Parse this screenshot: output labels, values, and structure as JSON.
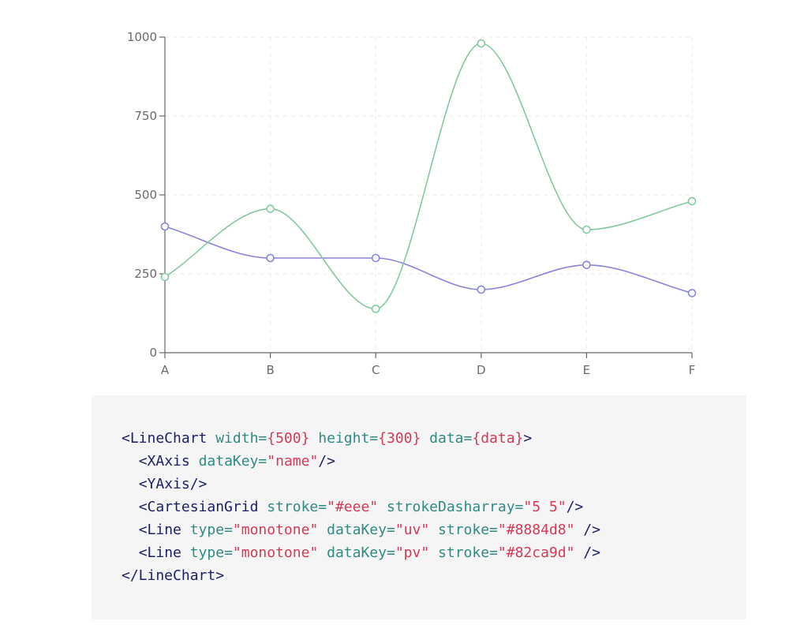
{
  "chart_data": {
    "type": "line",
    "categories": [
      "A",
      "B",
      "C",
      "D",
      "E",
      "F"
    ],
    "series": [
      {
        "key": "uv",
        "color": "#8884d8",
        "values": [
          400,
          300,
          300,
          200,
          278,
          189
        ]
      },
      {
        "key": "pv",
        "color": "#82ca9d",
        "values": [
          240,
          456,
          139,
          980,
          390,
          480
        ]
      }
    ],
    "ylim": [
      0,
      1000
    ],
    "yticks": [
      0,
      250,
      500,
      750,
      1000
    ],
    "yticks_labels": [
      "0",
      "250",
      "500",
      "750",
      "1000"
    ],
    "grid": true,
    "grid_stroke": "#eeeeee",
    "curve": "monotone",
    "xlabel": "",
    "ylabel": "",
    "title": ""
  },
  "code": {
    "lines": [
      [
        {
          "t": "tag",
          "v": "<LineChart"
        },
        {
          "t": "ws",
          "v": " "
        },
        {
          "t": "attr",
          "v": "width="
        },
        {
          "t": "str",
          "v": "{500}"
        },
        {
          "t": "ws",
          "v": " "
        },
        {
          "t": "attr",
          "v": "height="
        },
        {
          "t": "str",
          "v": "{300}"
        },
        {
          "t": "ws",
          "v": " "
        },
        {
          "t": "attr",
          "v": "data="
        },
        {
          "t": "str",
          "v": "{data}"
        },
        {
          "t": "punct",
          "v": ">"
        }
      ],
      [
        {
          "t": "ws",
          "v": "  "
        },
        {
          "t": "tag",
          "v": "<XAxis"
        },
        {
          "t": "ws",
          "v": " "
        },
        {
          "t": "attr",
          "v": "dataKey="
        },
        {
          "t": "str",
          "v": "\"name\""
        },
        {
          "t": "punct",
          "v": "/>"
        }
      ],
      [
        {
          "t": "ws",
          "v": "  "
        },
        {
          "t": "tag",
          "v": "<YAxis/>"
        }
      ],
      [
        {
          "t": "ws",
          "v": "  "
        },
        {
          "t": "tag",
          "v": "<CartesianGrid"
        },
        {
          "t": "ws",
          "v": " "
        },
        {
          "t": "attr",
          "v": "stroke="
        },
        {
          "t": "str",
          "v": "\"#eee\""
        },
        {
          "t": "ws",
          "v": " "
        },
        {
          "t": "attr",
          "v": "strokeDasharray="
        },
        {
          "t": "str",
          "v": "\"5 5\""
        },
        {
          "t": "punct",
          "v": "/>"
        }
      ],
      [
        {
          "t": "ws",
          "v": "  "
        },
        {
          "t": "tag",
          "v": "<Line"
        },
        {
          "t": "ws",
          "v": " "
        },
        {
          "t": "attr",
          "v": "type="
        },
        {
          "t": "str",
          "v": "\"monotone\""
        },
        {
          "t": "ws",
          "v": " "
        },
        {
          "t": "attr",
          "v": "dataKey="
        },
        {
          "t": "str",
          "v": "\"uv\""
        },
        {
          "t": "ws",
          "v": " "
        },
        {
          "t": "attr",
          "v": "stroke="
        },
        {
          "t": "str",
          "v": "\"#8884d8\""
        },
        {
          "t": "ws",
          "v": " "
        },
        {
          "t": "punct",
          "v": "/>"
        }
      ],
      [
        {
          "t": "ws",
          "v": "  "
        },
        {
          "t": "tag",
          "v": "<Line"
        },
        {
          "t": "ws",
          "v": " "
        },
        {
          "t": "attr",
          "v": "type="
        },
        {
          "t": "str",
          "v": "\"monotone\""
        },
        {
          "t": "ws",
          "v": " "
        },
        {
          "t": "attr",
          "v": "dataKey="
        },
        {
          "t": "str",
          "v": "\"pv\""
        },
        {
          "t": "ws",
          "v": " "
        },
        {
          "t": "attr",
          "v": "stroke="
        },
        {
          "t": "str",
          "v": "\"#82ca9d\""
        },
        {
          "t": "ws",
          "v": " "
        },
        {
          "t": "punct",
          "v": "/>"
        }
      ],
      [
        {
          "t": "tag",
          "v": "</LineChart>"
        }
      ]
    ]
  }
}
